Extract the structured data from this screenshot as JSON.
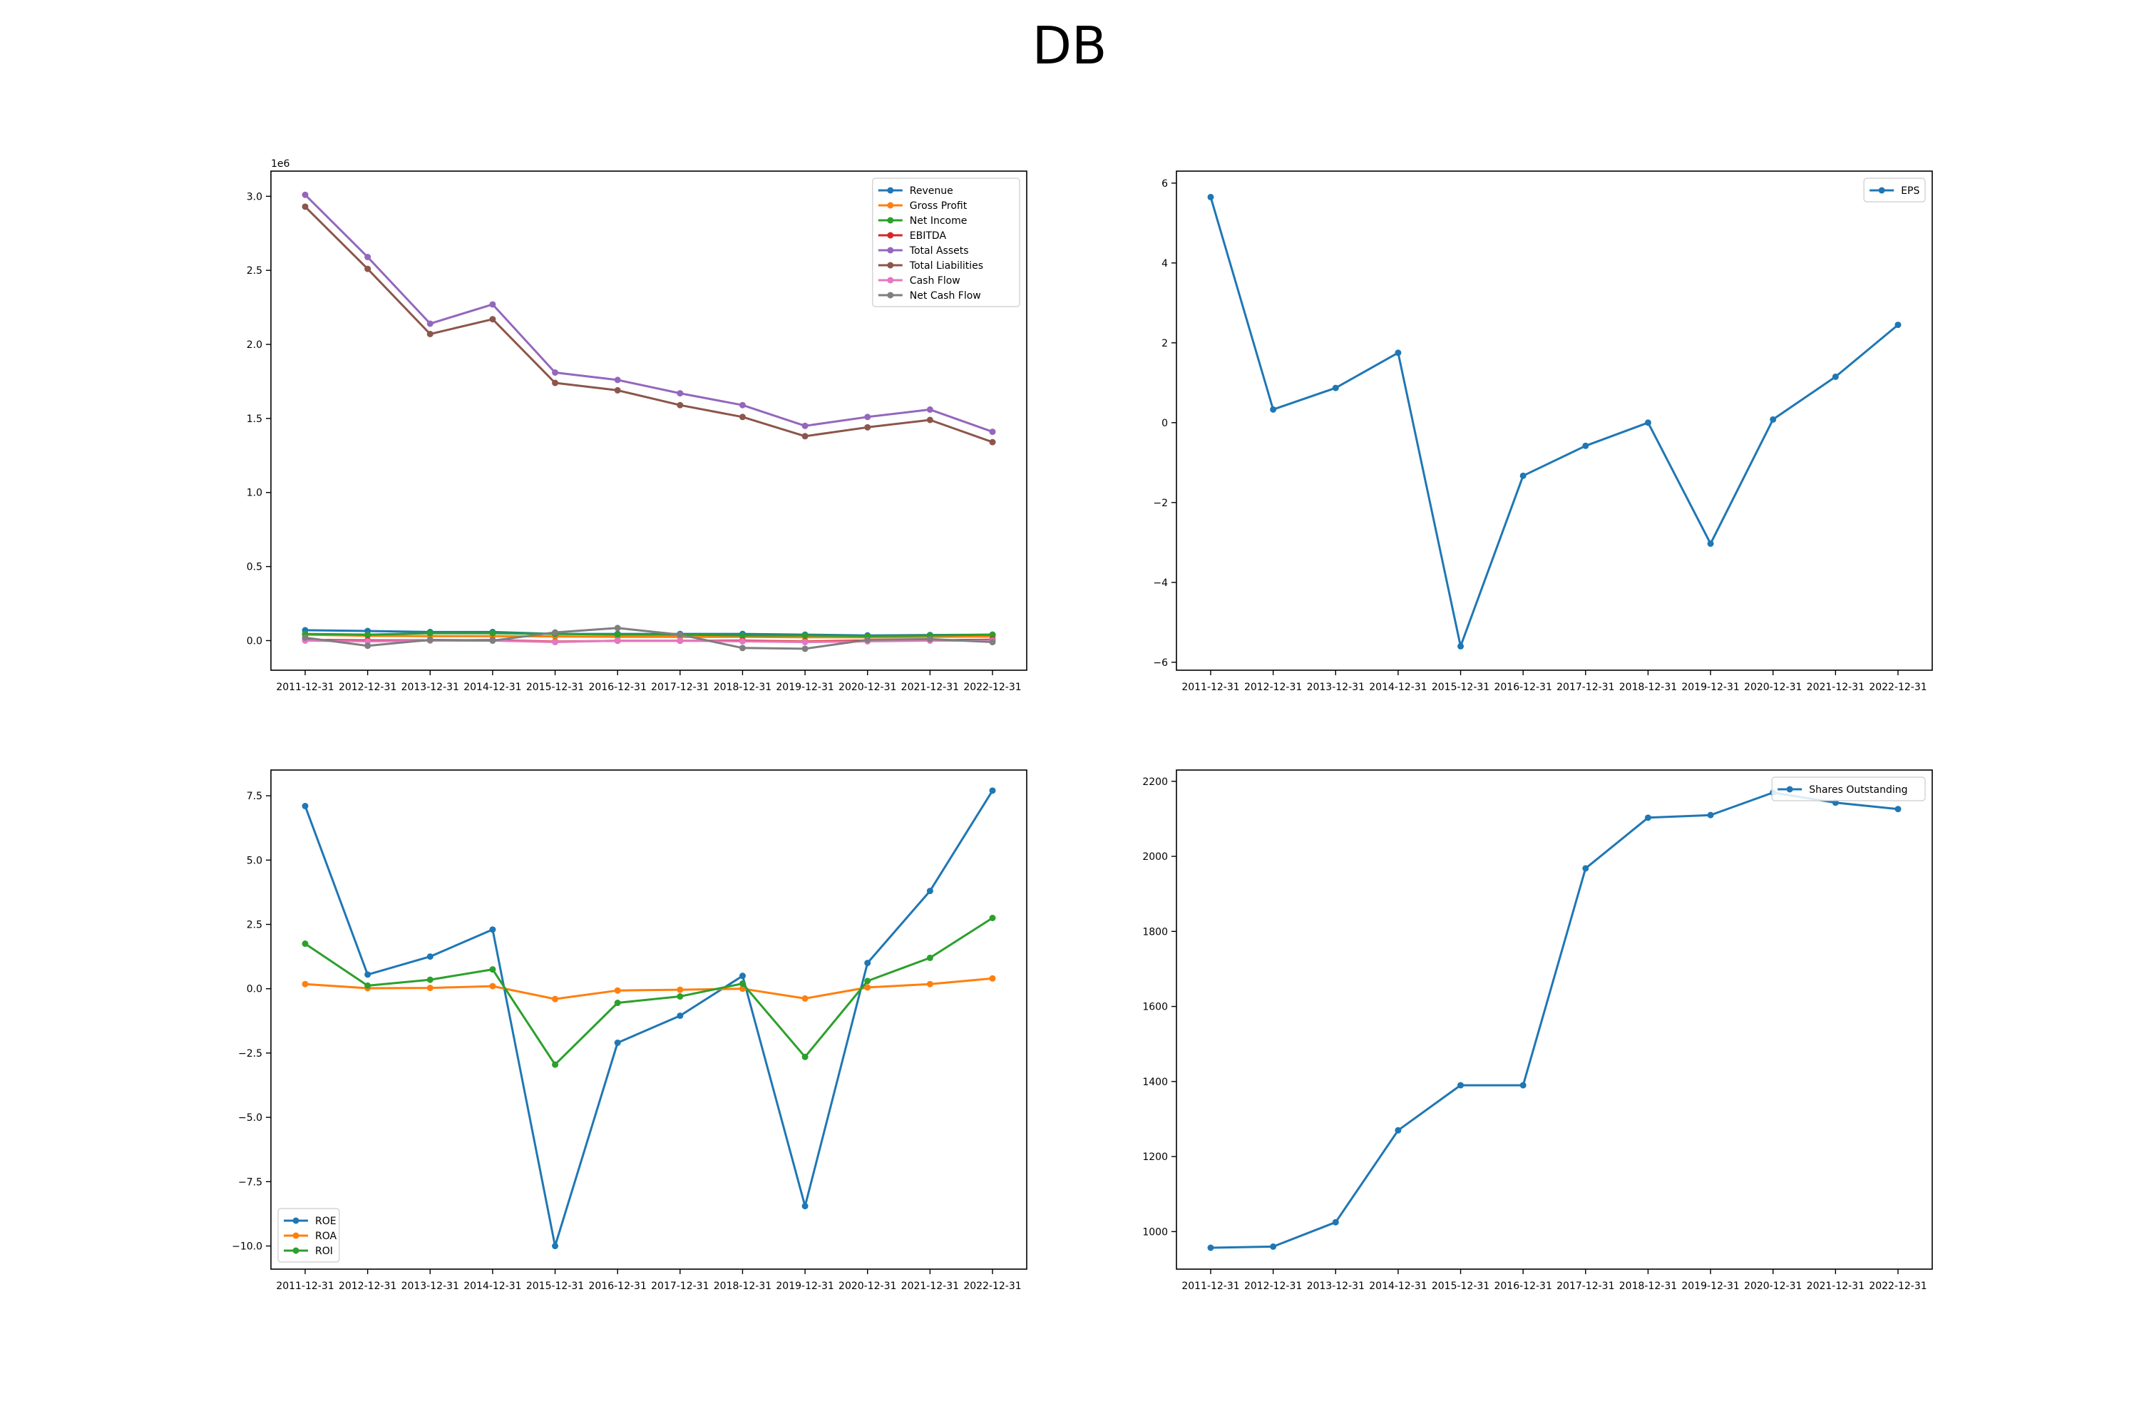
{
  "figure": {
    "title": "DB"
  },
  "chart_data": [
    {
      "type": "line",
      "title": "",
      "xlabel": "",
      "ylabel": "",
      "y_offset_label": "1e6",
      "categories": [
        "2011-12-31",
        "2012-12-31",
        "2013-12-31",
        "2014-12-31",
        "2015-12-31",
        "2016-12-31",
        "2017-12-31",
        "2018-12-31",
        "2019-12-31",
        "2020-12-31",
        "2021-12-31",
        "2022-12-31"
      ],
      "ylim": [
        -0.2,
        3.17
      ],
      "yticks": [
        0.0,
        0.5,
        1.0,
        1.5,
        2.0,
        2.5,
        3.0
      ],
      "ytick_labels": [
        "0.0",
        "0.5",
        "1.0",
        "1.5",
        "2.0",
        "2.5",
        "3.0"
      ],
      "legend": "top-right",
      "grid": false,
      "series": [
        {
          "name": "Revenue",
          "color": "#1f77b4",
          "values": [
            0.07,
            0.065,
            0.058,
            0.058,
            0.045,
            0.045,
            0.045,
            0.045,
            0.04,
            0.035,
            0.038,
            0.04
          ]
        },
        {
          "name": "Gross Profit",
          "color": "#ff7f0e",
          "values": [
            0.04,
            0.032,
            0.03,
            0.03,
            0.028,
            0.025,
            0.025,
            0.025,
            0.023,
            0.022,
            0.025,
            0.027
          ]
        },
        {
          "name": "Net Income",
          "color": "#2ca02c",
          "values": [
            0.045,
            0.04,
            0.05,
            0.05,
            0.045,
            0.04,
            0.04,
            0.035,
            0.035,
            0.03,
            0.035,
            0.04
          ]
        },
        {
          "name": "EBITDA",
          "color": "#d62728",
          "values": [
            0.005,
            0.001,
            0.002,
            0.003,
            -0.007,
            -0.001,
            -0.001,
            0.0,
            -0.006,
            0.001,
            0.002,
            0.006
          ]
        },
        {
          "name": "Total Assets",
          "color": "#9467bd",
          "values": [
            3.01,
            2.59,
            2.14,
            2.27,
            1.81,
            1.76,
            1.67,
            1.59,
            1.45,
            1.51,
            1.56,
            1.41
          ]
        },
        {
          "name": "Total Liabilities",
          "color": "#8c564b",
          "values": [
            2.93,
            2.51,
            2.07,
            2.17,
            1.74,
            1.69,
            1.59,
            1.51,
            1.38,
            1.44,
            1.49,
            1.34
          ]
        },
        {
          "name": "Cash Flow",
          "color": "#e377c2",
          "values": [
            0.0,
            -0.005,
            0.0,
            0.0,
            -0.01,
            0.0,
            0.0,
            -0.005,
            -0.01,
            -0.005,
            0.0,
            0.0
          ]
        },
        {
          "name": "Net Cash Flow",
          "color": "#7f7f7f",
          "values": [
            0.02,
            -0.035,
            0.005,
            0.0,
            0.055,
            0.085,
            0.04,
            -0.05,
            -0.055,
            0.005,
            0.01,
            -0.01
          ]
        }
      ]
    },
    {
      "type": "line",
      "title": "",
      "xlabel": "",
      "ylabel": "",
      "categories": [
        "2011-12-31",
        "2012-12-31",
        "2013-12-31",
        "2014-12-31",
        "2015-12-31",
        "2016-12-31",
        "2017-12-31",
        "2018-12-31",
        "2019-12-31",
        "2020-12-31",
        "2021-12-31",
        "2022-12-31"
      ],
      "ylim": [
        -6.2,
        6.3
      ],
      "yticks": [
        -6,
        -4,
        -2,
        0,
        2,
        4,
        6
      ],
      "ytick_labels": [
        "−6",
        "−4",
        "−2",
        "0",
        "2",
        "4",
        "6"
      ],
      "legend": "top-right",
      "grid": false,
      "series": [
        {
          "name": "EPS",
          "color": "#1f77b4",
          "values": [
            5.65,
            0.33,
            0.87,
            1.75,
            -5.6,
            -1.33,
            -0.58,
            0.0,
            -3.03,
            0.08,
            1.15,
            2.45
          ]
        }
      ]
    },
    {
      "type": "line",
      "title": "",
      "xlabel": "",
      "ylabel": "",
      "categories": [
        "2011-12-31",
        "2012-12-31",
        "2013-12-31",
        "2014-12-31",
        "2015-12-31",
        "2016-12-31",
        "2017-12-31",
        "2018-12-31",
        "2019-12-31",
        "2020-12-31",
        "2021-12-31",
        "2022-12-31"
      ],
      "ylim": [
        -10.9,
        8.5
      ],
      "yticks": [
        -10.0,
        -7.5,
        -5.0,
        -2.5,
        0.0,
        2.5,
        5.0,
        7.5
      ],
      "ytick_labels": [
        "−10.0",
        "−7.5",
        "−5.0",
        "−2.5",
        "0.0",
        "2.5",
        "5.0",
        "7.5"
      ],
      "legend": "bottom-left",
      "grid": false,
      "series": [
        {
          "name": "ROE",
          "color": "#1f77b4",
          "values": [
            7.1,
            0.55,
            1.25,
            2.3,
            -10.0,
            -2.1,
            -1.05,
            0.5,
            -8.45,
            1.0,
            3.8,
            7.7
          ]
        },
        {
          "name": "ROA",
          "color": "#ff7f0e",
          "values": [
            0.18,
            0.02,
            0.03,
            0.1,
            -0.4,
            -0.07,
            -0.04,
            0.0,
            -0.38,
            0.05,
            0.18,
            0.4
          ]
        },
        {
          "name": "ROI",
          "color": "#2ca02c",
          "values": [
            1.75,
            0.12,
            0.35,
            0.75,
            -2.95,
            -0.55,
            -0.3,
            0.2,
            -2.65,
            0.3,
            1.2,
            2.75
          ]
        }
      ]
    },
    {
      "type": "line",
      "title": "",
      "xlabel": "",
      "ylabel": "",
      "categories": [
        "2011-12-31",
        "2012-12-31",
        "2013-12-31",
        "2014-12-31",
        "2015-12-31",
        "2016-12-31",
        "2017-12-31",
        "2018-12-31",
        "2019-12-31",
        "2020-12-31",
        "2021-12-31",
        "2022-12-31"
      ],
      "ylim": [
        900,
        2230
      ],
      "yticks": [
        1000,
        1200,
        1400,
        1600,
        1800,
        2000,
        2200
      ],
      "ytick_labels": [
        "1000",
        "1200",
        "1400",
        "1600",
        "1800",
        "2000",
        "2200"
      ],
      "legend": "top-right",
      "grid": false,
      "series": [
        {
          "name": "Shares Outstanding",
          "color": "#1f77b4",
          "values": [
            957,
            960,
            1025,
            1270,
            1390,
            1390,
            1968,
            2103,
            2110,
            2170,
            2143,
            2126
          ]
        }
      ]
    }
  ]
}
